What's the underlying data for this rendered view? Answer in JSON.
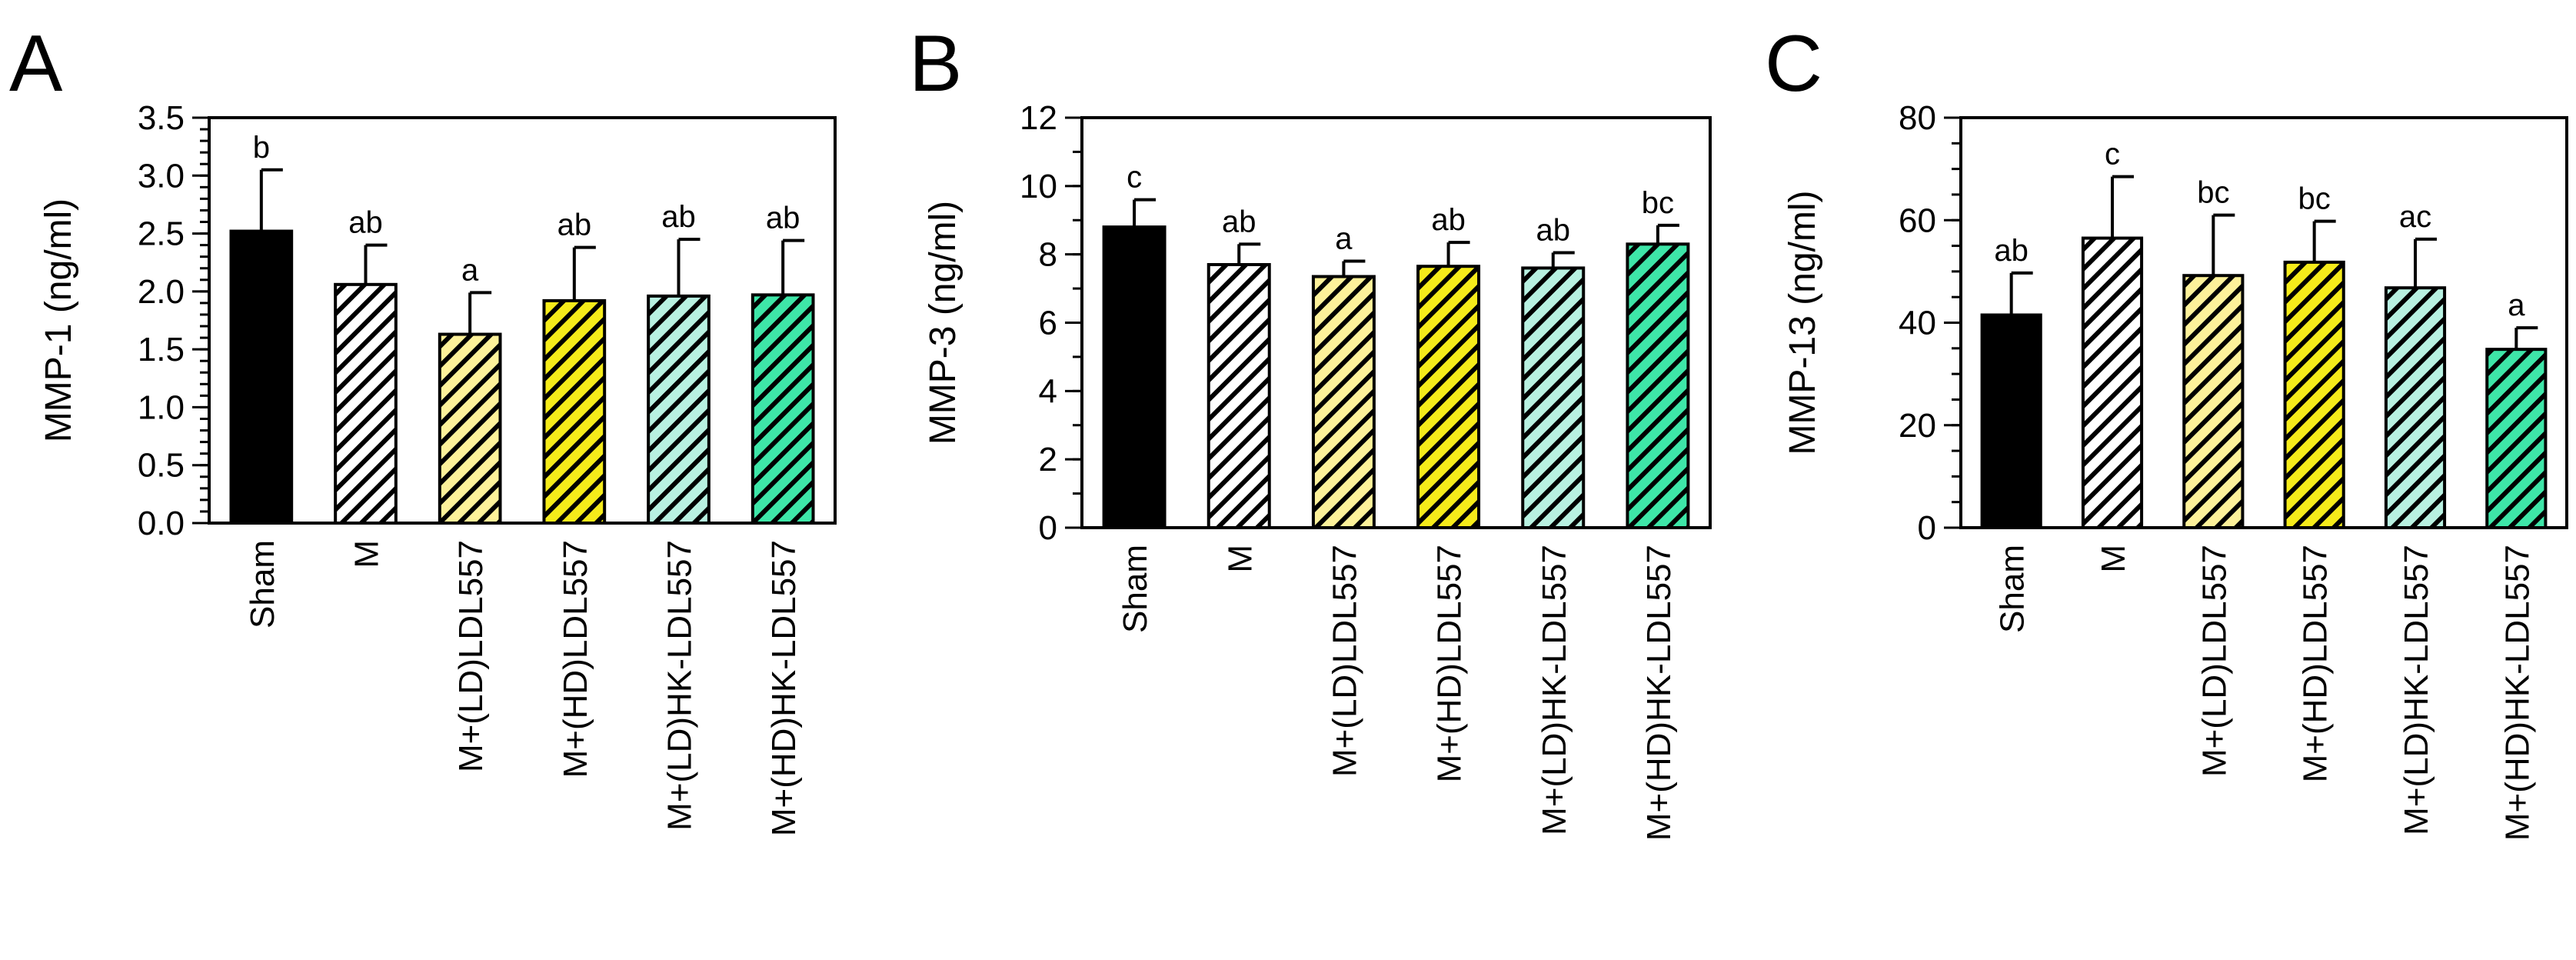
{
  "colors": {
    "sham": "#000000",
    "m": "#ffffff",
    "ld_ldl557": "#fdf19a",
    "hd_ldl557": "#f5eb1a",
    "ld_hk_ldl557": "#b8f1e1",
    "hd_hk_ldl557": "#3ee6a8"
  },
  "chart_data": [
    {
      "type": "bar",
      "panel": "A",
      "title": "",
      "xlabel": "",
      "ylabel": "MMP-1 (ng/ml)",
      "ylim": [
        0,
        3.5
      ],
      "yticks": [
        "0.0",
        "0.5",
        "1.0",
        "1.5",
        "2.0",
        "2.5",
        "3.0",
        "3.5"
      ],
      "minor_step": 0.1,
      "categories": [
        "Sham",
        "M",
        "M+(LD)LDL557",
        "M+(HD)LDL557",
        "M+(LD)HK-LDL557",
        "M+(HD)HK-LDL557"
      ],
      "values": [
        2.52,
        2.06,
        1.63,
        1.92,
        1.96,
        1.97
      ],
      "errors": [
        0.53,
        0.34,
        0.36,
        0.46,
        0.49,
        0.47
      ],
      "significance": [
        "b",
        "ab",
        "a",
        "ab",
        "ab",
        "ab"
      ]
    },
    {
      "type": "bar",
      "panel": "B",
      "title": "",
      "xlabel": "",
      "ylabel": "MMP-3 (ng/ml)",
      "ylim": [
        0,
        12
      ],
      "yticks": [
        "0",
        "2",
        "4",
        "6",
        "8",
        "10",
        "12"
      ],
      "minor_step": 1,
      "categories": [
        "Sham",
        "M",
        "M+(LD)LDL557",
        "M+(HD)LDL557",
        "M+(LD)HK-LDL557",
        "M+(HD)HK-LDL557"
      ],
      "values": [
        8.8,
        7.7,
        7.35,
        7.65,
        7.6,
        8.3
      ],
      "errors": [
        0.8,
        0.6,
        0.45,
        0.7,
        0.45,
        0.55
      ],
      "significance": [
        "c",
        "ab",
        "a",
        "ab",
        "ab",
        "bc"
      ]
    },
    {
      "type": "bar",
      "panel": "C",
      "title": "",
      "xlabel": "",
      "ylabel": "MMP-13 (ng/ml)",
      "ylim": [
        0,
        80
      ],
      "yticks": [
        "0",
        "20",
        "40",
        "60",
        "80"
      ],
      "minor_step": 5,
      "categories": [
        "Sham",
        "M",
        "M+(LD)LDL557",
        "M+(HD)LDL557",
        "M+(LD)HK-LDL557",
        "M+(HD)HK-LDL557"
      ],
      "values": [
        41.5,
        56.5,
        49.2,
        51.8,
        46.8,
        34.8
      ],
      "errors": [
        8.2,
        12.0,
        11.8,
        8.0,
        9.5,
        4.2
      ],
      "significance": [
        "ab",
        "c",
        "bc",
        "bc",
        "ac",
        "a"
      ]
    }
  ]
}
